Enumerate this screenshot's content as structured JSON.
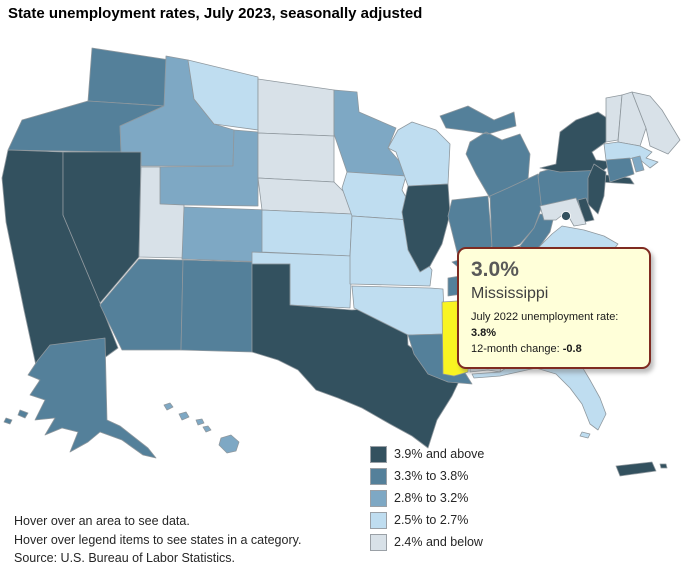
{
  "title": "State unemployment rates, July 2023, seasonally adjusted",
  "tooltip": {
    "rate": "3.0%",
    "state": "Mississippi",
    "prev_label": "July 2022 unemployment rate:",
    "prev_value": "3.8%",
    "change_label": "12-month change:",
    "change_value": "-0.8",
    "background": "#FFFFD9",
    "border_color": "#7F2B21"
  },
  "footer": {
    "line1": "Hover over an area to see data.",
    "line2": "Hover over legend items to see states in a category.",
    "line3": "Source: U.S. Bureau of Labor Statistics."
  },
  "chart_data": {
    "type": "choropleth",
    "title": "State unemployment rates, July 2023, seasonally adjusted",
    "unit": "unemployment rate, percent, seasonally adjusted",
    "legend_position": "bottom-right",
    "border_color": "#8f989e",
    "categories": [
      {
        "label": "3.9% and above",
        "color": "#33515F"
      },
      {
        "label": "3.3% to 3.8%",
        "color": "#54809A"
      },
      {
        "label": "2.8% to 3.2%",
        "color": "#7EA8C4"
      },
      {
        "label": "2.5% to 2.7%",
        "color": "#BFDDF0"
      },
      {
        "label": "2.4% and below",
        "color": "#D8E1E8"
      }
    ],
    "highlight": {
      "abbr": "MS",
      "state": "Mississippi",
      "color": "#F9F422",
      "rate": "3.0%",
      "july_2022_rate": "3.8%",
      "twelve_month_change": "-0.8"
    },
    "states": [
      {
        "abbr": "WA",
        "name": "Washington",
        "category": "3.3% to 3.8%"
      },
      {
        "abbr": "OR",
        "name": "Oregon",
        "category": "3.3% to 3.8%"
      },
      {
        "abbr": "CA",
        "name": "California",
        "category": "3.9% and above"
      },
      {
        "abbr": "NV",
        "name": "Nevada",
        "category": "3.9% and above"
      },
      {
        "abbr": "ID",
        "name": "Idaho",
        "category": "2.8% to 3.2%"
      },
      {
        "abbr": "MT",
        "name": "Montana",
        "category": "2.5% to 2.7%"
      },
      {
        "abbr": "WY",
        "name": "Wyoming",
        "category": "2.8% to 3.2%"
      },
      {
        "abbr": "UT",
        "name": "Utah",
        "category": "2.4% and below"
      },
      {
        "abbr": "CO",
        "name": "Colorado",
        "category": "2.8% to 3.2%"
      },
      {
        "abbr": "AZ",
        "name": "Arizona",
        "category": "3.3% to 3.8%"
      },
      {
        "abbr": "NM",
        "name": "New Mexico",
        "category": "3.3% to 3.8%"
      },
      {
        "abbr": "ND",
        "name": "North Dakota",
        "category": "2.4% and below"
      },
      {
        "abbr": "SD",
        "name": "South Dakota",
        "category": "2.4% and below"
      },
      {
        "abbr": "NE",
        "name": "Nebraska",
        "category": "2.4% and below"
      },
      {
        "abbr": "KS",
        "name": "Kansas",
        "category": "2.5% to 2.7%"
      },
      {
        "abbr": "OK",
        "name": "Oklahoma",
        "category": "2.5% to 2.7%"
      },
      {
        "abbr": "TX",
        "name": "Texas",
        "category": "3.9% and above"
      },
      {
        "abbr": "MN",
        "name": "Minnesota",
        "category": "2.8% to 3.2%"
      },
      {
        "abbr": "IA",
        "name": "Iowa",
        "category": "2.5% to 2.7%"
      },
      {
        "abbr": "MO",
        "name": "Missouri",
        "category": "2.5% to 2.7%"
      },
      {
        "abbr": "AR",
        "name": "Arkansas",
        "category": "2.5% to 2.7%"
      },
      {
        "abbr": "LA",
        "name": "Louisiana",
        "category": "3.3% to 3.8%"
      },
      {
        "abbr": "WI",
        "name": "Wisconsin",
        "category": "2.5% to 2.7%"
      },
      {
        "abbr": "IL",
        "name": "Illinois",
        "category": "3.9% and above"
      },
      {
        "abbr": "MI",
        "name": "Michigan",
        "category": "3.3% to 3.8%"
      },
      {
        "abbr": "IN",
        "name": "Indiana",
        "category": "3.3% to 3.8%"
      },
      {
        "abbr": "OH",
        "name": "Ohio",
        "category": "3.3% to 3.8%"
      },
      {
        "abbr": "KY",
        "name": "Kentucky",
        "category": "3.3% to 3.8%"
      },
      {
        "abbr": "TN",
        "name": "Tennessee",
        "category": "3.3% to 3.8%"
      },
      {
        "abbr": "MS",
        "name": "Mississippi",
        "category": "2.8% to 3.2%",
        "highlighted": true
      },
      {
        "abbr": "AL",
        "name": "Alabama",
        "category": "2.4% and below"
      },
      {
        "abbr": "GA",
        "name": "Georgia",
        "category": "2.8% to 3.2%"
      },
      {
        "abbr": "FL",
        "name": "Florida",
        "category": "2.5% to 2.7%"
      },
      {
        "abbr": "NC",
        "name": "North Carolina",
        "category": "3.3% to 3.8%"
      },
      {
        "abbr": "SC",
        "name": "South Carolina",
        "category": "2.8% to 3.2%"
      },
      {
        "abbr": "VA",
        "name": "Virginia",
        "category": "2.5% to 2.7%"
      },
      {
        "abbr": "WV",
        "name": "West Virginia",
        "category": "3.3% to 3.8%"
      },
      {
        "abbr": "PA",
        "name": "Pennsylvania",
        "category": "3.3% to 3.8%"
      },
      {
        "abbr": "NY",
        "name": "New York",
        "category": "3.9% and above"
      },
      {
        "abbr": "NJ",
        "name": "New Jersey",
        "category": "3.9% and above"
      },
      {
        "abbr": "DE",
        "name": "Delaware",
        "category": "3.9% and above"
      },
      {
        "abbr": "MD",
        "name": "Maryland",
        "category": "2.4% and below"
      },
      {
        "abbr": "VT",
        "name": "Vermont",
        "category": "2.4% and below"
      },
      {
        "abbr": "NH",
        "name": "New Hampshire",
        "category": "2.4% and below"
      },
      {
        "abbr": "ME",
        "name": "Maine",
        "category": "2.4% and below"
      },
      {
        "abbr": "MA",
        "name": "Massachusetts",
        "category": "2.5% to 2.7%"
      },
      {
        "abbr": "CT",
        "name": "Connecticut",
        "category": "3.3% to 3.8%"
      },
      {
        "abbr": "RI",
        "name": "Rhode Island",
        "category": "2.8% to 3.2%"
      },
      {
        "abbr": "AK",
        "name": "Alaska",
        "category": "3.3% to 3.8%"
      },
      {
        "abbr": "HI",
        "name": "Hawaii",
        "category": "2.8% to 3.2%"
      },
      {
        "abbr": "PR",
        "name": "Puerto Rico",
        "category": "3.9% and above"
      },
      {
        "abbr": "DC",
        "name": "District of Columbia",
        "category": "3.9% and above"
      }
    ]
  }
}
